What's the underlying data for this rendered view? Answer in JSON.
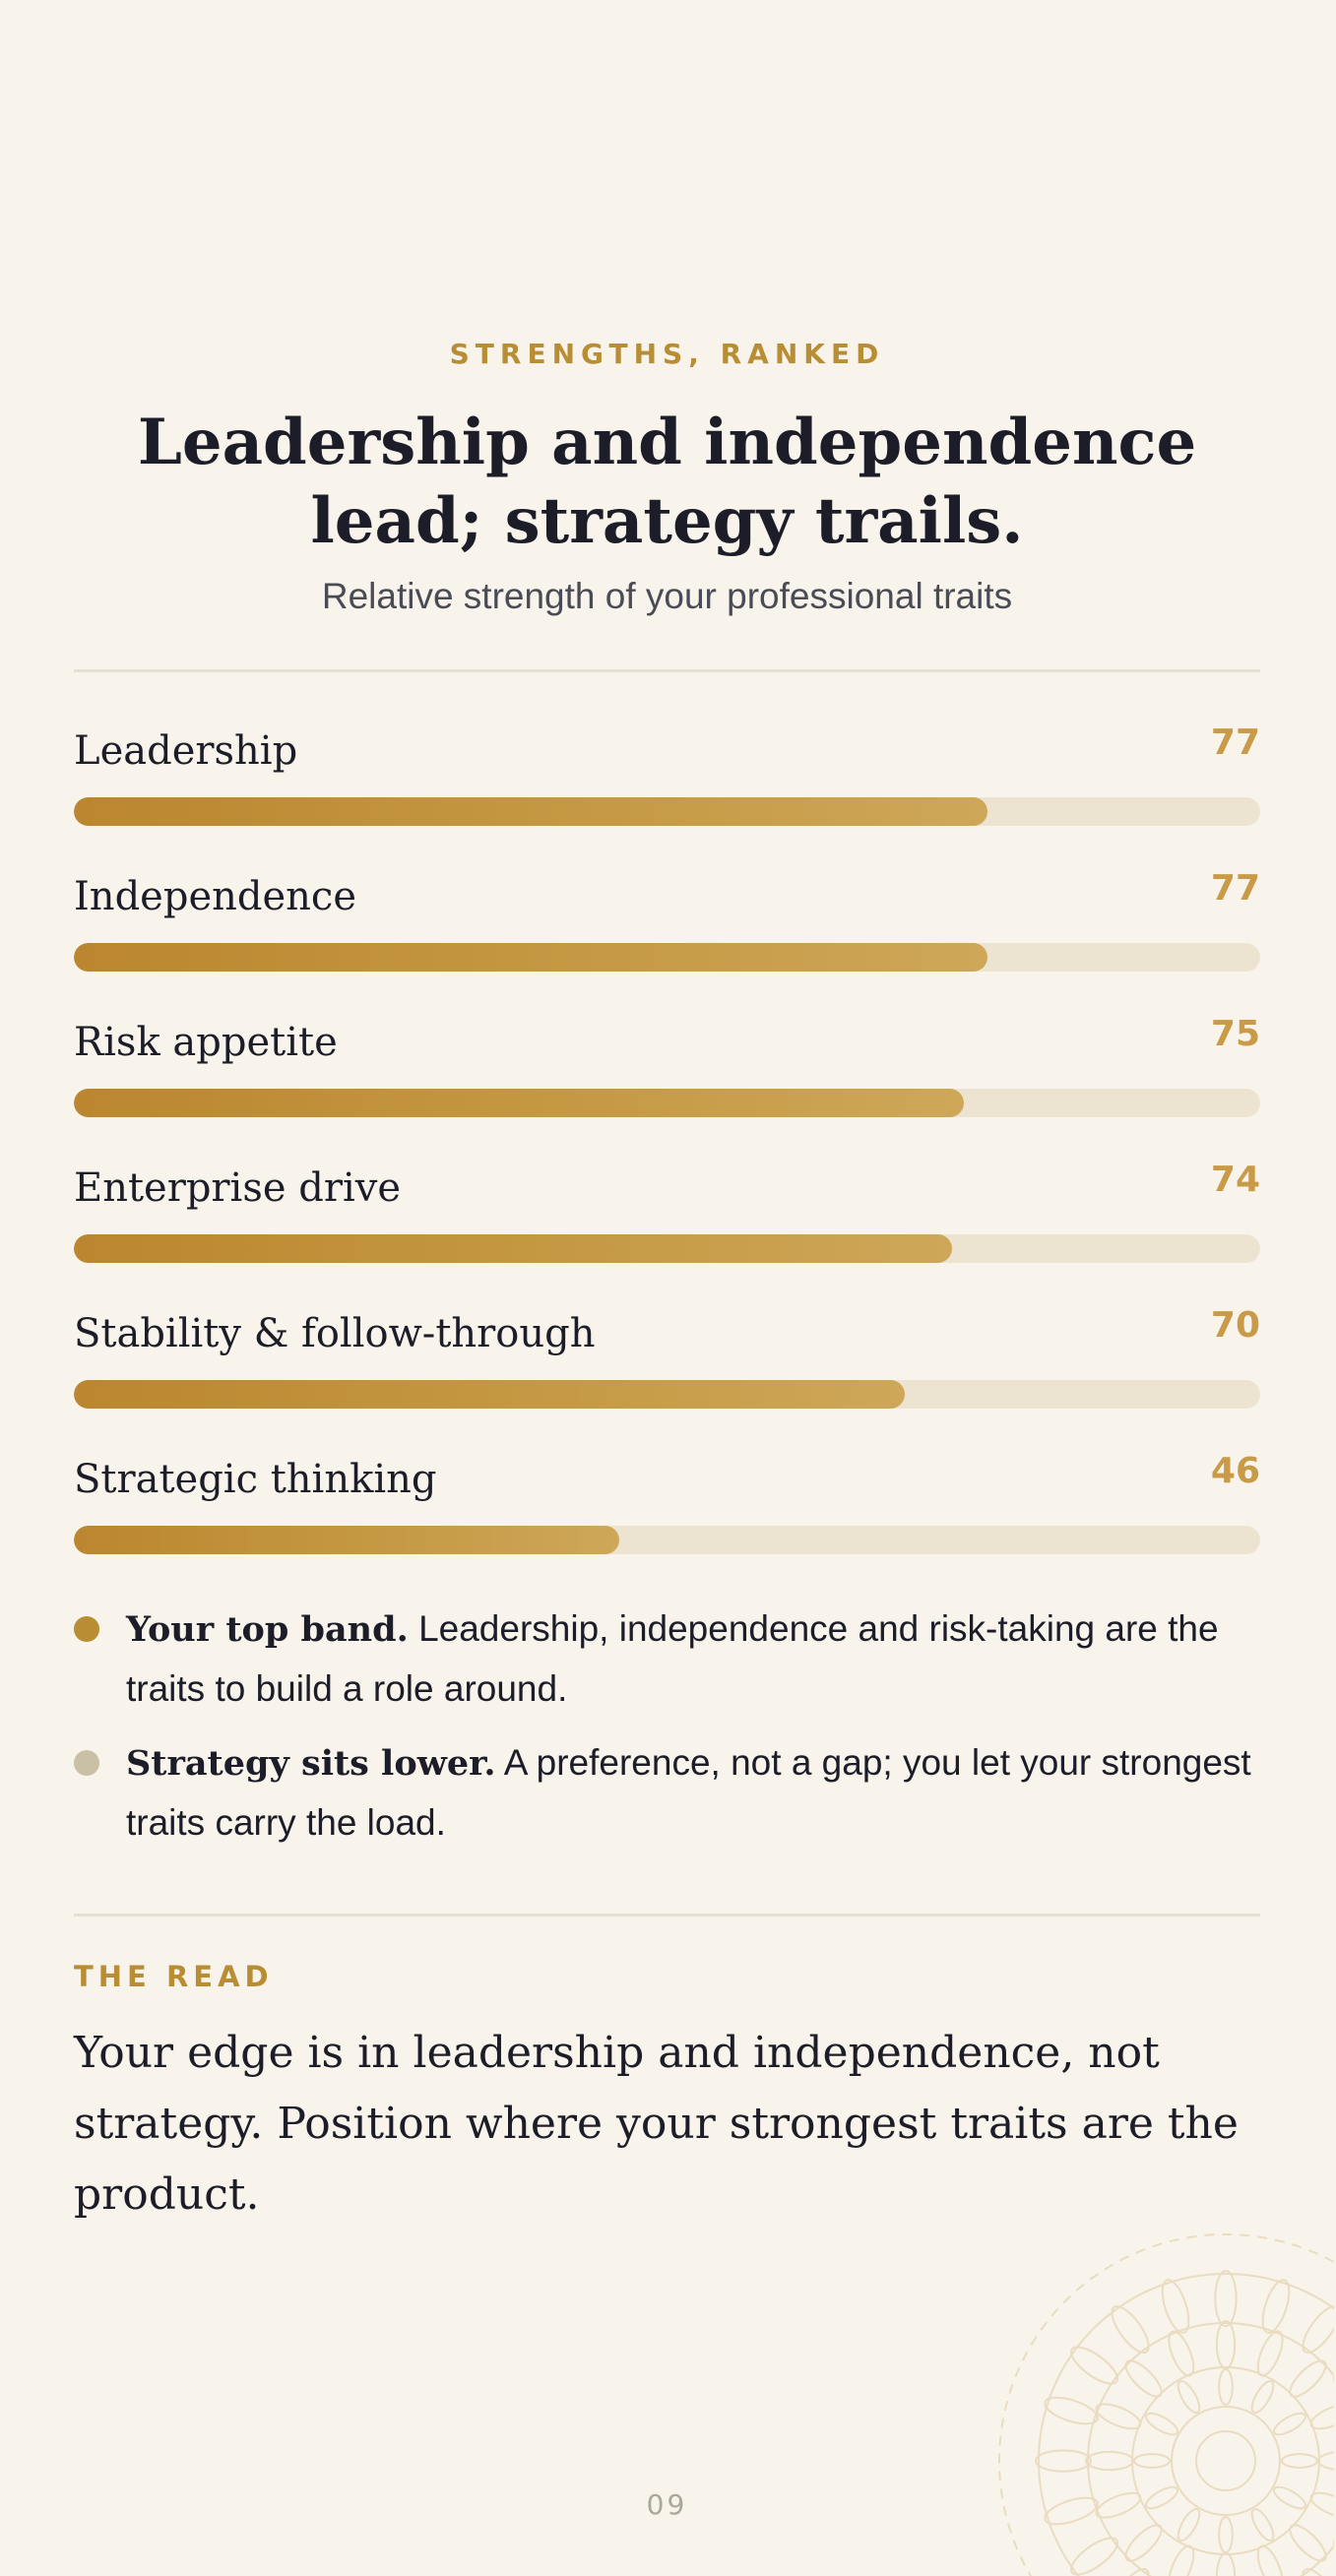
{
  "header": {
    "eyebrow": "STRENGTHS, RANKED",
    "title_line1": "Leadership and independence",
    "title_line2": "lead; strategy trails.",
    "subtitle": "Relative strength of your professional traits"
  },
  "chart_data": {
    "type": "bar",
    "categories": [
      "Leadership",
      "Independence",
      "Risk appetite",
      "Enterprise drive",
      "Stability & follow-through",
      "Strategic thinking"
    ],
    "values": [
      77,
      77,
      75,
      74,
      70,
      46
    ],
    "ylim": [
      0,
      100
    ]
  },
  "notes": [
    {
      "lead": "Your top band.",
      "text": " Leadership, independence and risk-taking are the traits to build a role around.",
      "dot_color": "#b98d33"
    },
    {
      "lead": "Strategy sits lower.",
      "text": " A preference, not a gap; you let your strongest traits carry the load.",
      "dot_color": "#c9c0a5"
    }
  ],
  "read": {
    "label": "THE READ",
    "text": "Your edge is in leadership and independence, not strategy. Position where your strongest traits are the product."
  },
  "page_number": "09",
  "colors": {
    "accent": "#b98d33",
    "score": "#c99a47",
    "background": "#f8f4ec",
    "track": "#ede3d1",
    "ink": "#1c1d28"
  },
  "decoration": {
    "icon": "mandala-ornament-icon"
  }
}
